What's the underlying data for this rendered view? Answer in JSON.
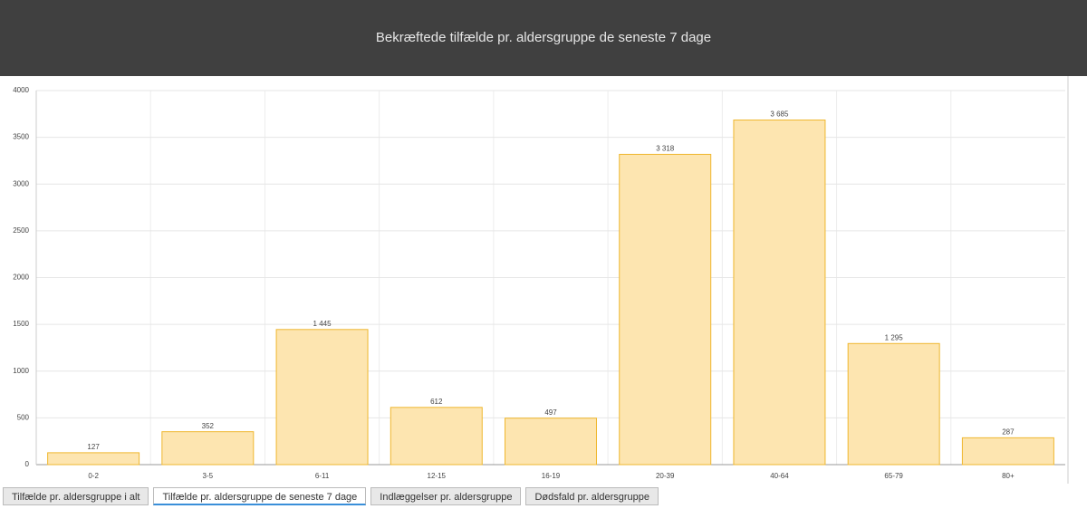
{
  "chart_data": {
    "type": "bar",
    "title": "Bekræftede tilfælde pr. aldersgruppe de seneste 7 dage",
    "categories": [
      "0-2",
      "3-5",
      "6-11",
      "12-15",
      "16-19",
      "20-39",
      "40-64",
      "65-79",
      "80+"
    ],
    "values": [
      127,
      352,
      1445,
      612,
      497,
      3318,
      3685,
      1295,
      287
    ],
    "value_labels": [
      "127",
      "352",
      "1 445",
      "612",
      "497",
      "3 318",
      "3 685",
      "1 295",
      "287"
    ],
    "color": "#fde5b0",
    "edge_color": "#efb72f",
    "ylim": [
      0,
      4000
    ],
    "yticks": [
      0,
      500,
      1000,
      1500,
      2000,
      2500,
      3000,
      3500,
      4000
    ],
    "grid": true
  },
  "tabs": [
    "Tilfælde pr. aldersgruppe i alt",
    "Tilfælde pr. aldersgruppe de seneste 7 dage",
    "Indlæggelser pr. aldersgruppe",
    "Dødsfald pr. aldersgruppe"
  ]
}
